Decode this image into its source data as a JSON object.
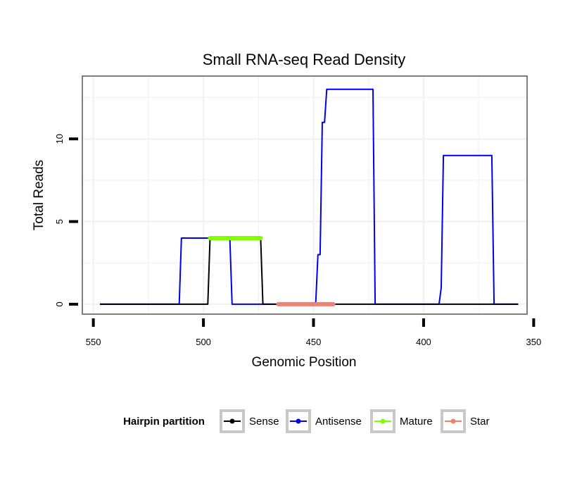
{
  "chart_data": {
    "type": "line",
    "title": "Small RNA-seq Read Density",
    "xlabel": "Genomic Position",
    "ylabel": "Total Reads",
    "x_reversed": true,
    "xlim": [
      555,
      353
    ],
    "ylim": [
      -0.6,
      13.8
    ],
    "x_ticks": [
      550,
      500,
      450,
      400,
      350
    ],
    "y_ticks": [
      0,
      5,
      10
    ],
    "grid": true,
    "legend": {
      "title": "Hairpin partition",
      "position": "bottom",
      "entries": [
        "Sense",
        "Antisense",
        "Mature",
        "Star"
      ]
    },
    "series": [
      {
        "name": "Antisense",
        "color": "#0000ee",
        "width": 2,
        "points": [
          [
            547,
            0
          ],
          [
            511,
            0
          ],
          [
            510,
            4
          ],
          [
            498,
            4
          ],
          [
            488,
            4
          ],
          [
            487,
            0
          ],
          [
            449,
            0
          ],
          [
            448,
            3
          ],
          [
            447,
            3
          ],
          [
            446,
            11
          ],
          [
            445,
            11
          ],
          [
            444,
            13
          ],
          [
            423,
            13
          ],
          [
            422,
            0
          ],
          [
            393,
            0
          ],
          [
            392,
            1
          ],
          [
            391,
            9
          ],
          [
            369,
            9
          ],
          [
            368,
            0
          ],
          [
            357,
            0
          ]
        ]
      },
      {
        "name": "Sense",
        "color": "#000000",
        "width": 2,
        "points": [
          [
            547,
            0
          ],
          [
            498,
            0
          ],
          [
            497,
            4
          ],
          [
            474,
            4
          ],
          [
            473,
            0
          ],
          [
            357,
            0
          ]
        ]
      },
      {
        "name": "Mature",
        "color": "#7fff00",
        "width": 6,
        "points": [
          [
            497,
            4
          ],
          [
            474,
            4
          ]
        ]
      },
      {
        "name": "Star",
        "color": "#f08070",
        "width": 6,
        "points": [
          [
            466,
            0
          ],
          [
            441,
            0
          ]
        ]
      }
    ]
  }
}
